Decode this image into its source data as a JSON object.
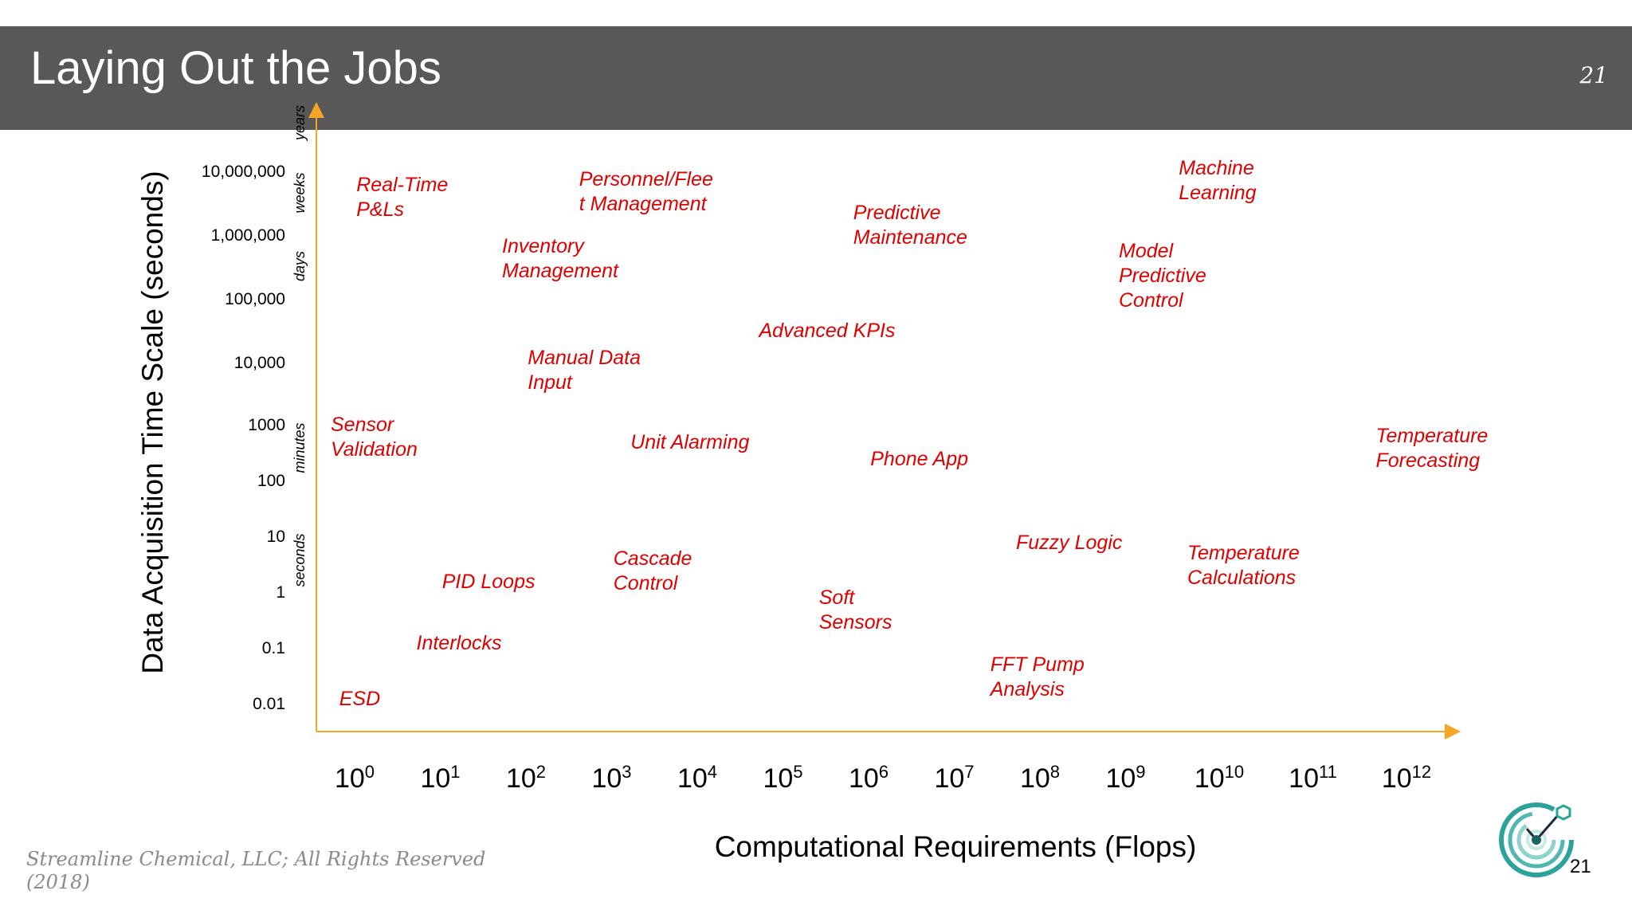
{
  "slide": {
    "title": "Laying Out the Jobs",
    "page_number_header": "21",
    "page_number_footer": "21",
    "credit_line1": "Streamline Chemical, LLC; All Rights Reserved",
    "credit_line2": "(2018)",
    "logo_icon": "streamline-logo-icon"
  },
  "chart_data": {
    "type": "scatter",
    "title": "Laying Out the Jobs",
    "xlabel": "Computational Requirements (Flops)",
    "ylabel": "Data Acquisition Time Scale (seconds)",
    "x_ticks": [
      {
        "base": "10",
        "exp": "0"
      },
      {
        "base": "10",
        "exp": "1"
      },
      {
        "base": "10",
        "exp": "2"
      },
      {
        "base": "10",
        "exp": "3"
      },
      {
        "base": "10",
        "exp": "4"
      },
      {
        "base": "10",
        "exp": "5"
      },
      {
        "base": "10",
        "exp": "6"
      },
      {
        "base": "10",
        "exp": "7"
      },
      {
        "base": "10",
        "exp": "8"
      },
      {
        "base": "10",
        "exp": "9"
      },
      {
        "base": "10",
        "exp": "10"
      },
      {
        "base": "10",
        "exp": "11"
      },
      {
        "base": "10",
        "exp": "12"
      }
    ],
    "y_ticks": [
      "10,000,000",
      "1,000,000",
      "100,000",
      "10,000",
      "1000",
      "100",
      "10",
      "1",
      "0.1",
      "0.01"
    ],
    "y_time_labels": [
      "years",
      "weeks",
      "days",
      "minutes",
      "seconds"
    ],
    "accent_color": "#F5A623",
    "label_color": "#E00000",
    "points": [
      {
        "label": "Real-Time\nP&Ls",
        "x": 0.3,
        "y": 7.0
      },
      {
        "label": "Personnel/Flee\nt Management",
        "x": 2.9,
        "y": 7.1
      },
      {
        "label": "Machine\nLearning",
        "x": 9.9,
        "y": 7.3
      },
      {
        "label": "Predictive\nMaintenance",
        "x": 6.1,
        "y": 6.5
      },
      {
        "label": "Inventory\nManagement",
        "x": 2.0,
        "y": 5.9
      },
      {
        "label": "Model\nPredictive\nControl",
        "x": 9.2,
        "y": 5.6
      },
      {
        "label": "Advanced KPIs",
        "x": 5.0,
        "y": 4.6
      },
      {
        "label": "Manual Data\nInput",
        "x": 2.3,
        "y": 3.9
      },
      {
        "label": "Sensor\nValidation",
        "x": 0.0,
        "y": 2.7
      },
      {
        "label": "Unit Alarming",
        "x": 3.5,
        "y": 2.6
      },
      {
        "label": "Phone App",
        "x": 6.3,
        "y": 2.3
      },
      {
        "label": "Temperature\nForecasting",
        "x": 12.2,
        "y": 2.5
      },
      {
        "label": "Fuzzy Logic",
        "x": 8.0,
        "y": 0.8
      },
      {
        "label": "Temperature\nCalculations",
        "x": 10.0,
        "y": 0.4
      },
      {
        "label": "Cascade\nControl",
        "x": 3.3,
        "y": 0.3
      },
      {
        "label": "PID Loops",
        "x": 1.3,
        "y": 0.1
      },
      {
        "label": "Soft\nSensors",
        "x": 5.7,
        "y": -0.4
      },
      {
        "label": "Interlocks",
        "x": 1.0,
        "y": -1.0
      },
      {
        "label": "FFT Pump\nAnalysis",
        "x": 7.7,
        "y": -1.6
      },
      {
        "label": "ESD",
        "x": 0.1,
        "y": -2.0
      }
    ]
  }
}
